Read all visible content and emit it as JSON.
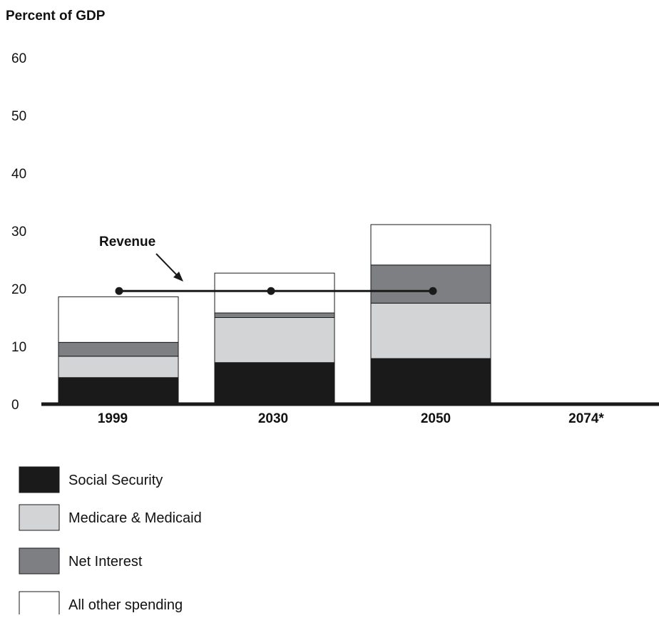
{
  "chart_data": {
    "type": "bar",
    "stacked": true,
    "ylabel": "Percent of GDP",
    "ylim": [
      0,
      60
    ],
    "yticks": [
      "0",
      "10",
      "20",
      "30",
      "40",
      "50",
      "60"
    ],
    "grid": false,
    "categories": [
      "1999",
      "2030",
      "2050",
      "2074*"
    ],
    "series": [
      {
        "name": "Social Security",
        "color": "#1a1a1a",
        "values": [
          4.6,
          7.2,
          7.9,
          null
        ]
      },
      {
        "name": "Medicare & Medicaid",
        "color": "#d3d4d6",
        "values": [
          3.7,
          7.8,
          9.6,
          null
        ]
      },
      {
        "name": "Net Interest",
        "color": "#7e7f82",
        "values": [
          2.4,
          0.8,
          6.6,
          null
        ]
      },
      {
        "name": "All other spending",
        "color": "#ffffff",
        "values": [
          7.9,
          6.9,
          7.0,
          null
        ]
      }
    ],
    "revenue": {
      "label": "Revenue",
      "values": [
        19.6,
        19.6,
        19.6,
        null
      ]
    },
    "legend_position": "bottom-left"
  }
}
